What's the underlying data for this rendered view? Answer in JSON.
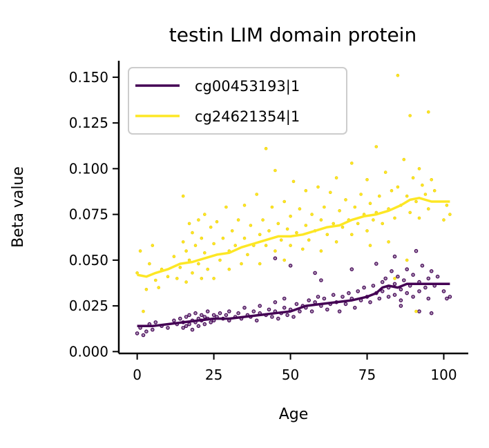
{
  "chart_data": {
    "type": "scatter",
    "title": "testin LIM domain protein",
    "xlabel": "Age",
    "ylabel": "Beta value",
    "xlim": [
      -6,
      108
    ],
    "ylim": [
      -0.001,
      0.159
    ],
    "xticks": [
      0,
      25,
      50,
      75,
      100
    ],
    "xtick_labels": [
      "0",
      "25",
      "50",
      "75",
      "100"
    ],
    "yticks": [
      0.0,
      0.025,
      0.05,
      0.075,
      0.1,
      0.125,
      0.15
    ],
    "ytick_labels": [
      "0.000",
      "0.025",
      "0.050",
      "0.075",
      "0.100",
      "0.125",
      "0.150"
    ],
    "grid": false,
    "legend_position": "upper-left",
    "series": [
      {
        "name": "cg00453193|1",
        "color": "#440154",
        "trend": [
          [
            0,
            0.014
          ],
          [
            5,
            0.014
          ],
          [
            10,
            0.015
          ],
          [
            15,
            0.016
          ],
          [
            20,
            0.017
          ],
          [
            25,
            0.018
          ],
          [
            30,
            0.018
          ],
          [
            35,
            0.019
          ],
          [
            40,
            0.02
          ],
          [
            45,
            0.021
          ],
          [
            50,
            0.022
          ],
          [
            55,
            0.025
          ],
          [
            60,
            0.026
          ],
          [
            65,
            0.027
          ],
          [
            70,
            0.028
          ],
          [
            75,
            0.03
          ],
          [
            78,
            0.032
          ],
          [
            80,
            0.035
          ],
          [
            82,
            0.036
          ],
          [
            85,
            0.035
          ],
          [
            88,
            0.037
          ],
          [
            90,
            0.037
          ],
          [
            95,
            0.037
          ],
          [
            102,
            0.037
          ]
        ],
        "points": [
          [
            0,
            0.01
          ],
          [
            1,
            0.013
          ],
          [
            2,
            0.009
          ],
          [
            3,
            0.011
          ],
          [
            4,
            0.015
          ],
          [
            5,
            0.012
          ],
          [
            6,
            0.016
          ],
          [
            8,
            0.014
          ],
          [
            10,
            0.013
          ],
          [
            12,
            0.017
          ],
          [
            13,
            0.015
          ],
          [
            14,
            0.018
          ],
          [
            15,
            0.016
          ],
          [
            15,
            0.013
          ],
          [
            16,
            0.019
          ],
          [
            16,
            0.014
          ],
          [
            17,
            0.02
          ],
          [
            17,
            0.015
          ],
          [
            18,
            0.017
          ],
          [
            18,
            0.012
          ],
          [
            19,
            0.021
          ],
          [
            19,
            0.016
          ],
          [
            20,
            0.018
          ],
          [
            20,
            0.014
          ],
          [
            21,
            0.02
          ],
          [
            21,
            0.017
          ],
          [
            22,
            0.015
          ],
          [
            22,
            0.019
          ],
          [
            23,
            0.018
          ],
          [
            23,
            0.022
          ],
          [
            24,
            0.016
          ],
          [
            25,
            0.02
          ],
          [
            25,
            0.017
          ],
          [
            26,
            0.019
          ],
          [
            27,
            0.021
          ],
          [
            28,
            0.018
          ],
          [
            29,
            0.02
          ],
          [
            30,
            0.017
          ],
          [
            30,
            0.022
          ],
          [
            32,
            0.019
          ],
          [
            33,
            0.021
          ],
          [
            34,
            0.018
          ],
          [
            35,
            0.024
          ],
          [
            36,
            0.02
          ],
          [
            37,
            0.019
          ],
          [
            38,
            0.022
          ],
          [
            39,
            0.017
          ],
          [
            40,
            0.021
          ],
          [
            40,
            0.025
          ],
          [
            42,
            0.02
          ],
          [
            43,
            0.023
          ],
          [
            44,
            0.019
          ],
          [
            45,
            0.022
          ],
          [
            45,
            0.027
          ],
          [
            46,
            0.018
          ],
          [
            47,
            0.021
          ],
          [
            48,
            0.024
          ],
          [
            48,
            0.029
          ],
          [
            49,
            0.02
          ],
          [
            50,
            0.023
          ],
          [
            51,
            0.019
          ],
          [
            52,
            0.026
          ],
          [
            53,
            0.022
          ],
          [
            54,
            0.025
          ],
          [
            55,
            0.024
          ],
          [
            56,
            0.028
          ],
          [
            57,
            0.022
          ],
          [
            58,
            0.027
          ],
          [
            59,
            0.03
          ],
          [
            60,
            0.025
          ],
          [
            61,
            0.029
          ],
          [
            62,
            0.023
          ],
          [
            63,
            0.026
          ],
          [
            64,
            0.031
          ],
          [
            65,
            0.027
          ],
          [
            66,
            0.022
          ],
          [
            67,
            0.03
          ],
          [
            68,
            0.026
          ],
          [
            69,
            0.032
          ],
          [
            70,
            0.029
          ],
          [
            71,
            0.024
          ],
          [
            72,
            0.033
          ],
          [
            73,
            0.028
          ],
          [
            74,
            0.035
          ],
          [
            75,
            0.03
          ],
          [
            76,
            0.027
          ],
          [
            77,
            0.036
          ],
          [
            78,
            0.032
          ],
          [
            79,
            0.029
          ],
          [
            80,
            0.038
          ],
          [
            80,
            0.033
          ],
          [
            81,
            0.04
          ],
          [
            82,
            0.035
          ],
          [
            82,
            0.03
          ],
          [
            83,
            0.044
          ],
          [
            84,
            0.037
          ],
          [
            84,
            0.031
          ],
          [
            85,
            0.041
          ],
          [
            86,
            0.034
          ],
          [
            86,
            0.028
          ],
          [
            87,
            0.039
          ],
          [
            88,
            0.045
          ],
          [
            88,
            0.032
          ],
          [
            89,
            0.036
          ],
          [
            90,
            0.042
          ],
          [
            90,
            0.03
          ],
          [
            91,
            0.055
          ],
          [
            92,
            0.038
          ],
          [
            92,
            0.033
          ],
          [
            93,
            0.047
          ],
          [
            94,
            0.035
          ],
          [
            95,
            0.04
          ],
          [
            95,
            0.029
          ],
          [
            96,
            0.044
          ],
          [
            97,
            0.036
          ],
          [
            98,
            0.041
          ],
          [
            100,
            0.033
          ],
          [
            101,
            0.029
          ],
          [
            102,
            0.03
          ],
          [
            78,
            0.048
          ],
          [
            84,
            0.052
          ],
          [
            70,
            0.045
          ],
          [
            60,
            0.039
          ],
          [
            50,
            0.047
          ],
          [
            45,
            0.051
          ],
          [
            58,
            0.043
          ],
          [
            86,
            0.025
          ],
          [
            92,
            0.022
          ],
          [
            96,
            0.021
          ]
        ]
      },
      {
        "name": "cg24621354|1",
        "color": "#fde725",
        "trend": [
          [
            0,
            0.042
          ],
          [
            3,
            0.041
          ],
          [
            6,
            0.043
          ],
          [
            10,
            0.045
          ],
          [
            14,
            0.048
          ],
          [
            18,
            0.049
          ],
          [
            22,
            0.051
          ],
          [
            26,
            0.053
          ],
          [
            30,
            0.054
          ],
          [
            34,
            0.057
          ],
          [
            38,
            0.059
          ],
          [
            42,
            0.061
          ],
          [
            46,
            0.063
          ],
          [
            50,
            0.063
          ],
          [
            54,
            0.064
          ],
          [
            58,
            0.066
          ],
          [
            62,
            0.068
          ],
          [
            66,
            0.069
          ],
          [
            70,
            0.072
          ],
          [
            74,
            0.074
          ],
          [
            78,
            0.075
          ],
          [
            82,
            0.077
          ],
          [
            86,
            0.08
          ],
          [
            89,
            0.083
          ],
          [
            92,
            0.084
          ],
          [
            96,
            0.082
          ],
          [
            102,
            0.082
          ]
        ],
        "points": [
          [
            0,
            0.043
          ],
          [
            1,
            0.055
          ],
          [
            2,
            0.022
          ],
          [
            3,
            0.034
          ],
          [
            4,
            0.048
          ],
          [
            5,
            0.058
          ],
          [
            6,
            0.039
          ],
          [
            7,
            0.035
          ],
          [
            8,
            0.045
          ],
          [
            10,
            0.041
          ],
          [
            12,
            0.052
          ],
          [
            13,
            0.04
          ],
          [
            14,
            0.046
          ],
          [
            15,
            0.085
          ],
          [
            15,
            0.06
          ],
          [
            16,
            0.055
          ],
          [
            16,
            0.038
          ],
          [
            17,
            0.07
          ],
          [
            17,
            0.05
          ],
          [
            18,
            0.043
          ],
          [
            18,
            0.065
          ],
          [
            19,
            0.058
          ],
          [
            20,
            0.072
          ],
          [
            20,
            0.048
          ],
          [
            21,
            0.04
          ],
          [
            21,
            0.062
          ],
          [
            22,
            0.075
          ],
          [
            22,
            0.054
          ],
          [
            23,
            0.045
          ],
          [
            24,
            0.068
          ],
          [
            25,
            0.059
          ],
          [
            25,
            0.04
          ],
          [
            26,
            0.071
          ],
          [
            27,
            0.05
          ],
          [
            28,
            0.062
          ],
          [
            29,
            0.079
          ],
          [
            30,
            0.055
          ],
          [
            30,
            0.045
          ],
          [
            31,
            0.066
          ],
          [
            32,
            0.058
          ],
          [
            33,
            0.072
          ],
          [
            34,
            0.048
          ],
          [
            35,
            0.08
          ],
          [
            35,
            0.062
          ],
          [
            36,
            0.053
          ],
          [
            37,
            0.069
          ],
          [
            38,
            0.058
          ],
          [
            39,
            0.086
          ],
          [
            40,
            0.064
          ],
          [
            40,
            0.048
          ],
          [
            41,
            0.072
          ],
          [
            42,
            0.111
          ],
          [
            42,
            0.058
          ],
          [
            43,
            0.066
          ],
          [
            44,
            0.079
          ],
          [
            45,
            0.055
          ],
          [
            45,
            0.099
          ],
          [
            46,
            0.07
          ],
          [
            47,
            0.061
          ],
          [
            48,
            0.082
          ],
          [
            48,
            0.05
          ],
          [
            49,
            0.067
          ],
          [
            50,
            0.074
          ],
          [
            50,
            0.058
          ],
          [
            51,
            0.093
          ],
          [
            52,
            0.065
          ],
          [
            53,
            0.078
          ],
          [
            54,
            0.056
          ],
          [
            55,
            0.069
          ],
          [
            55,
            0.088
          ],
          [
            56,
            0.061
          ],
          [
            57,
            0.075
          ],
          [
            58,
            0.066
          ],
          [
            59,
            0.09
          ],
          [
            60,
            0.072
          ],
          [
            60,
            0.055
          ],
          [
            61,
            0.079
          ],
          [
            62,
            0.064
          ],
          [
            63,
            0.087
          ],
          [
            64,
            0.07
          ],
          [
            65,
            0.095
          ],
          [
            65,
            0.06
          ],
          [
            66,
            0.077
          ],
          [
            67,
            0.068
          ],
          [
            68,
            0.083
          ],
          [
            69,
            0.072
          ],
          [
            70,
            0.103
          ],
          [
            70,
            0.064
          ],
          [
            71,
            0.079
          ],
          [
            72,
            0.07
          ],
          [
            73,
            0.086
          ],
          [
            74,
            0.075
          ],
          [
            75,
            0.094
          ],
          [
            75,
            0.066
          ],
          [
            76,
            0.081
          ],
          [
            77,
            0.072
          ],
          [
            78,
            0.112
          ],
          [
            78,
            0.076
          ],
          [
            79,
            0.085
          ],
          [
            80,
            0.07
          ],
          [
            81,
            0.098
          ],
          [
            82,
            0.078
          ],
          [
            83,
            0.088
          ],
          [
            84,
            0.073
          ],
          [
            85,
            0.151
          ],
          [
            85,
            0.09
          ],
          [
            86,
            0.08
          ],
          [
            87,
            0.105
          ],
          [
            88,
            0.085
          ],
          [
            89,
            0.129
          ],
          [
            89,
            0.076
          ],
          [
            90,
            0.095
          ],
          [
            91,
            0.082
          ],
          [
            92,
            0.1
          ],
          [
            92,
            0.073
          ],
          [
            93,
            0.091
          ],
          [
            94,
            0.086
          ],
          [
            95,
            0.131
          ],
          [
            95,
            0.078
          ],
          [
            96,
            0.094
          ],
          [
            97,
            0.088
          ],
          [
            100,
            0.072
          ],
          [
            101,
            0.08
          ],
          [
            102,
            0.075
          ],
          [
            88,
            0.05
          ],
          [
            91,
            0.022
          ],
          [
            84,
            0.04
          ],
          [
            82,
            0.06
          ],
          [
            76,
            0.058
          ]
        ]
      }
    ]
  }
}
